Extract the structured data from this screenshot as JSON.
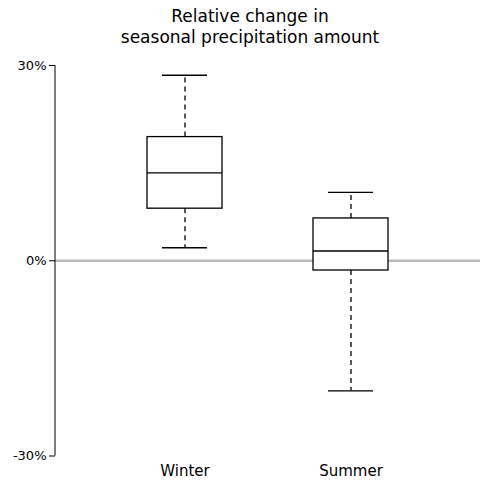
{
  "chart_data": {
    "type": "box",
    "title": "Relative change in\nseasonal precipitation amount",
    "categories": [
      "Winter",
      "Summer"
    ],
    "values": [
      {
        "whislo": 2.0,
        "q1": 8.0,
        "med": 13.5,
        "q3": 19.0,
        "whishi": 28.5
      },
      {
        "whislo": -20.0,
        "q1": -1.5,
        "med": 1.5,
        "q3": 6.5,
        "whishi": 10.5
      }
    ],
    "zero_line": 0,
    "line_style": "dashed",
    "ylim": [
      -30,
      30
    ],
    "yticks": [
      {
        "value": -30,
        "label": "-30%"
      },
      {
        "value": 0,
        "label": "0%"
      },
      {
        "value": 30,
        "label": "30%"
      }
    ],
    "grid": false
  }
}
